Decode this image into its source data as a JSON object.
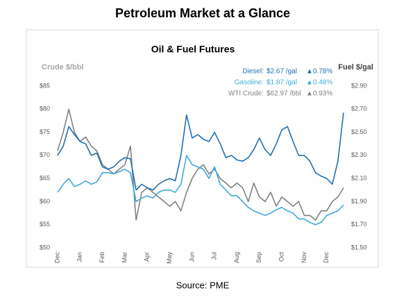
{
  "page_title": "Petroleum Market at a Glance",
  "source": "Source: PME",
  "chart_data": {
    "type": "line",
    "title": "Oil & Fuel Futures",
    "ylabel": "Crude $/bbl",
    "y2label": "Fuel $/gal",
    "categories": [
      "Dec",
      null,
      null,
      null,
      "Jan",
      null,
      null,
      null,
      "Feb",
      null,
      null,
      null,
      "Mar",
      null,
      null,
      null,
      "Apr",
      null,
      null,
      null,
      "May",
      null,
      null,
      null,
      "Jun",
      null,
      null,
      null,
      "Jul",
      null,
      null,
      null,
      "Aug",
      null,
      null,
      null,
      "Sep",
      null,
      null,
      null,
      "Oct",
      null,
      null,
      null,
      "Nov",
      null,
      null,
      null,
      "Dec",
      null,
      null,
      null
    ],
    "ylim": [
      50,
      85
    ],
    "yticks": [
      {
        "value": 85,
        "label": "$85"
      },
      {
        "value": 80,
        "label": "$80"
      },
      {
        "value": 75,
        "label": "$75"
      },
      {
        "value": 70,
        "label": "$70"
      },
      {
        "value": 65,
        "label": "$65"
      },
      {
        "value": 60,
        "label": "$60"
      },
      {
        "value": 55,
        "label": "$55"
      },
      {
        "value": 50,
        "label": "$50"
      }
    ],
    "y2lim": [
      1.5,
      2.9
    ],
    "y2ticks": [
      {
        "value": 2.9,
        "label": "$2.90"
      },
      {
        "value": 2.7,
        "label": "$2.70"
      },
      {
        "value": 2.5,
        "label": "$2.50"
      },
      {
        "value": 2.3,
        "label": "$2.30"
      },
      {
        "value": 2.1,
        "label": "$2.10"
      },
      {
        "value": 1.9,
        "label": "$1.90"
      },
      {
        "value": 1.7,
        "label": "$1.70"
      },
      {
        "value": 1.5,
        "label": "$1.50"
      }
    ],
    "series": [
      {
        "name": "Diesel:",
        "price": "$2.67 /gal",
        "change": "▲0.78%",
        "color": "#1f6fb5",
        "axis": "y2",
        "values": [
          2.3,
          2.38,
          2.55,
          2.48,
          2.42,
          2.4,
          2.3,
          2.32,
          2.2,
          2.18,
          2.2,
          2.25,
          2.28,
          2.27,
          2.0,
          2.05,
          2.02,
          2.0,
          2.05,
          2.08,
          2.1,
          2.08,
          2.3,
          2.65,
          2.45,
          2.48,
          2.44,
          2.42,
          2.5,
          2.4,
          2.28,
          2.3,
          2.26,
          2.25,
          2.28,
          2.35,
          2.45,
          2.35,
          2.3,
          2.4,
          2.52,
          2.55,
          2.42,
          2.3,
          2.3,
          2.25,
          2.15,
          2.12,
          2.1,
          2.05,
          2.25,
          2.67
        ]
      },
      {
        "name": "Gasoline:",
        "price": "$1.87 /gal",
        "change": "▲0.48%",
        "color": "#3fa9d8",
        "axis": "y2",
        "values": [
          1.98,
          2.05,
          2.1,
          2.03,
          2.05,
          2.08,
          2.05,
          2.07,
          2.15,
          2.15,
          2.14,
          2.16,
          2.18,
          2.15,
          1.9,
          1.93,
          1.95,
          1.93,
          1.98,
          2.0,
          2.0,
          1.98,
          2.05,
          2.3,
          2.22,
          2.2,
          2.18,
          2.1,
          2.2,
          2.05,
          2.0,
          1.95,
          1.95,
          1.9,
          1.85,
          1.82,
          1.8,
          1.78,
          1.8,
          1.83,
          1.85,
          1.82,
          1.8,
          1.75,
          1.75,
          1.72,
          1.7,
          1.72,
          1.78,
          1.8,
          1.82,
          1.87
        ]
      },
      {
        "name": "WTI Crude:",
        "price": "$62.97 /bbl",
        "change": "▲0.93%",
        "color": "#808080",
        "values": [
          71,
          75,
          80,
          75,
          73,
          74,
          72,
          71,
          68,
          67,
          66,
          67,
          68,
          72,
          56,
          62,
          63,
          62,
          61,
          60,
          59,
          60,
          58,
          62,
          65,
          67,
          68,
          66,
          67,
          65,
          64,
          63,
          64,
          63,
          60,
          64,
          61,
          60,
          62,
          59,
          61,
          60,
          59,
          60,
          57,
          57,
          56,
          58,
          58,
          60,
          61,
          63
        ]
      }
    ]
  }
}
